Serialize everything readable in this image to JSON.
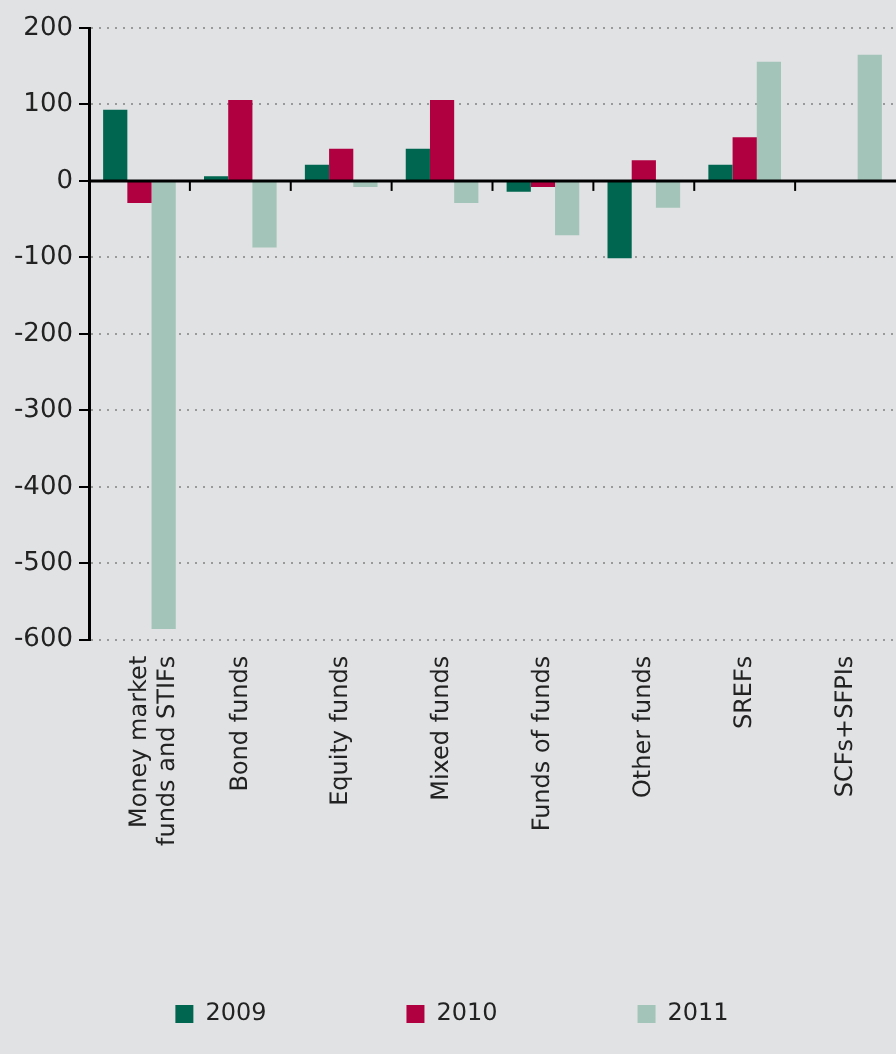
{
  "chart_data": {
    "type": "bar",
    "categories": [
      "Money market funds and STIFs",
      "Bond funds",
      "Equity funds",
      "Mixed funds",
      "Funds of funds",
      "Other funds",
      "SREFs",
      "SCFs+SFPIs"
    ],
    "series": [
      {
        "name": "2009",
        "color": "#00664f",
        "values": [
          93,
          6,
          21,
          42,
          -14,
          -101,
          21,
          null
        ]
      },
      {
        "name": "2010",
        "color": "#b00040",
        "values": [
          -29,
          106,
          42,
          106,
          -8,
          27,
          57,
          null
        ]
      },
      {
        "name": "2011",
        "color": "#a3c4b8",
        "values": [
          -586,
          -87,
          -8,
          -29,
          -71,
          -35,
          156,
          165
        ]
      }
    ],
    "ylim": [
      -600,
      200
    ],
    "yticks": [
      -600,
      -500,
      -400,
      -300,
      -200,
      -100,
      0,
      100,
      200
    ],
    "grid": "y",
    "legend": "bottom"
  }
}
